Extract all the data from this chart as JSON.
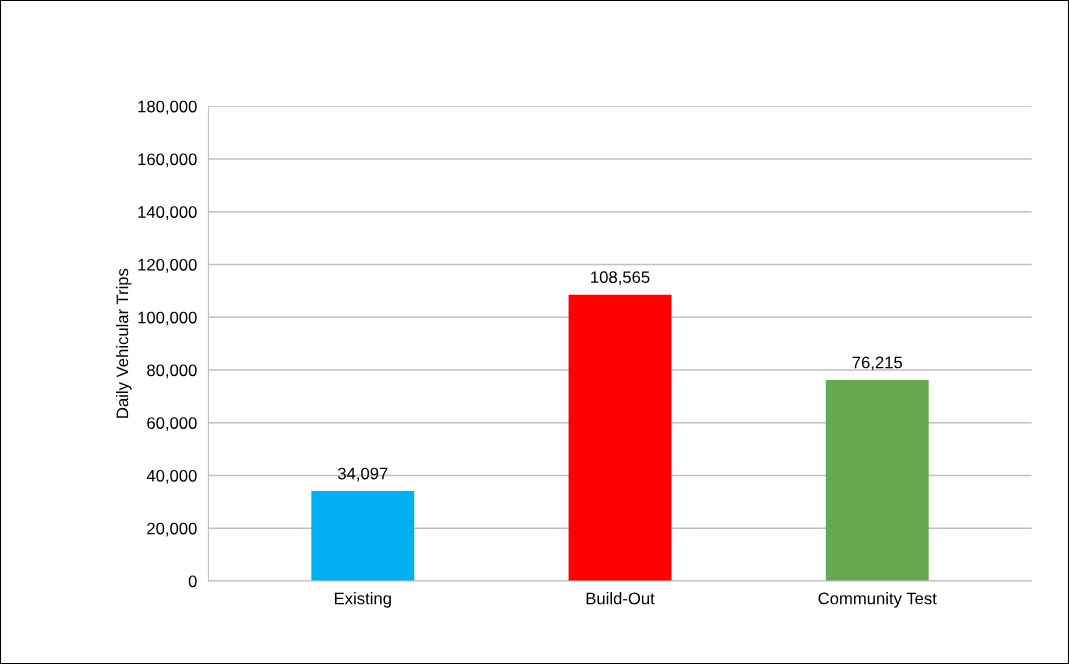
{
  "chart_data": {
    "type": "bar",
    "ylabel": "Daily Vehicular Trips",
    "categories": [
      "Existing",
      "Build-Out",
      "Community Test"
    ],
    "values": [
      34097,
      108565,
      76215
    ],
    "colors": [
      "#00b0f0",
      "#ff0000",
      "#64a84f"
    ],
    "value_labels": [
      "34,097",
      "108,565",
      "76,215"
    ],
    "ylim": [
      0,
      180000
    ],
    "yticks": [
      {
        "value": 0,
        "label": "0"
      },
      {
        "value": 20000,
        "label": "20,000"
      },
      {
        "value": 40000,
        "label": "40,000"
      },
      {
        "value": 60000,
        "label": "60,000"
      },
      {
        "value": 80000,
        "label": "80,000"
      },
      {
        "value": 100000,
        "label": "100,000"
      },
      {
        "value": 120000,
        "label": "120,000"
      },
      {
        "value": 140000,
        "label": "140,000"
      },
      {
        "value": 160000,
        "label": "160,000"
      },
      {
        "value": 180000,
        "label": "180,000"
      }
    ],
    "grid": "y"
  }
}
